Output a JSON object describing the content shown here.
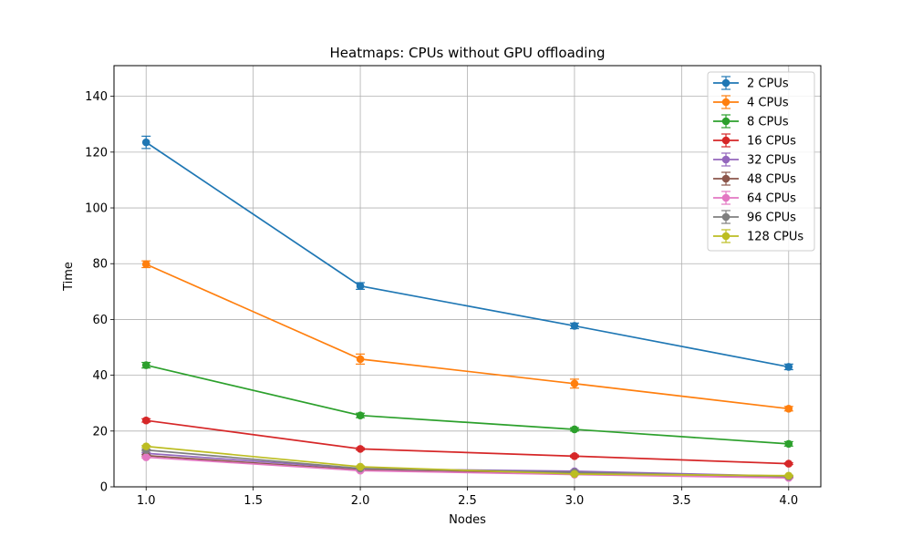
{
  "chart_data": {
    "type": "line",
    "title": "Heatmaps: CPUs without GPU offloading",
    "xlabel": "Nodes",
    "ylabel": "Time",
    "xlim": [
      0.85,
      4.15
    ],
    "ylim": [
      0,
      151
    ],
    "x_ticks": [
      "1.0",
      "1.5",
      "2.0",
      "2.5",
      "3.0",
      "3.5",
      "4.0"
    ],
    "x_tick_values": [
      1.0,
      1.5,
      2.0,
      2.5,
      3.0,
      3.5,
      4.0
    ],
    "y_ticks": [
      "0",
      "20",
      "40",
      "60",
      "80",
      "100",
      "120",
      "140"
    ],
    "y_tick_values": [
      0,
      20,
      40,
      60,
      80,
      100,
      120,
      140
    ],
    "grid": true,
    "legend_position": "top-right",
    "x": [
      1,
      2,
      3,
      4
    ],
    "series": [
      {
        "name": "2 CPUs",
        "color": "#1f77b4",
        "values": [
          123.5,
          72.0,
          57.7,
          43.0
        ],
        "errors": [
          2.2,
          1.2,
          1.0,
          1.0
        ]
      },
      {
        "name": "4 CPUs",
        "color": "#ff7f0e",
        "values": [
          79.8,
          45.8,
          37.0,
          28.0
        ],
        "errors": [
          1.2,
          1.8,
          1.6,
          0.8
        ]
      },
      {
        "name": "8 CPUs",
        "color": "#2ca02c",
        "values": [
          43.6,
          25.6,
          20.6,
          15.4
        ],
        "errors": [
          1.0,
          0.8,
          0.6,
          0.8
        ]
      },
      {
        "name": "16 CPUs",
        "color": "#d62728",
        "values": [
          23.8,
          13.6,
          11.0,
          8.3
        ],
        "errors": [
          0.6,
          0.4,
          0.4,
          0.3
        ]
      },
      {
        "name": "32 CPUs",
        "color": "#9467bd",
        "values": [
          12.0,
          6.5,
          5.6,
          3.8
        ],
        "errors": [
          0.3,
          0.3,
          0.3,
          0.2
        ]
      },
      {
        "name": "48 CPUs",
        "color": "#8c564b",
        "values": [
          11.2,
          6.0,
          4.8,
          3.4
        ],
        "errors": [
          0.3,
          0.2,
          0.2,
          0.2
        ]
      },
      {
        "name": "64 CPUs",
        "color": "#e377c2",
        "values": [
          10.6,
          5.8,
          4.4,
          3.2
        ],
        "errors": [
          0.3,
          0.2,
          0.2,
          0.2
        ]
      },
      {
        "name": "96 CPUs",
        "color": "#7f7f7f",
        "values": [
          13.2,
          6.6,
          5.2,
          3.7
        ],
        "errors": [
          0.3,
          0.2,
          0.2,
          0.2
        ]
      },
      {
        "name": "128 CPUs",
        "color": "#bcbd22",
        "values": [
          14.5,
          7.2,
          4.6,
          4.0
        ],
        "errors": [
          0.3,
          0.3,
          0.2,
          0.2
        ]
      }
    ]
  }
}
